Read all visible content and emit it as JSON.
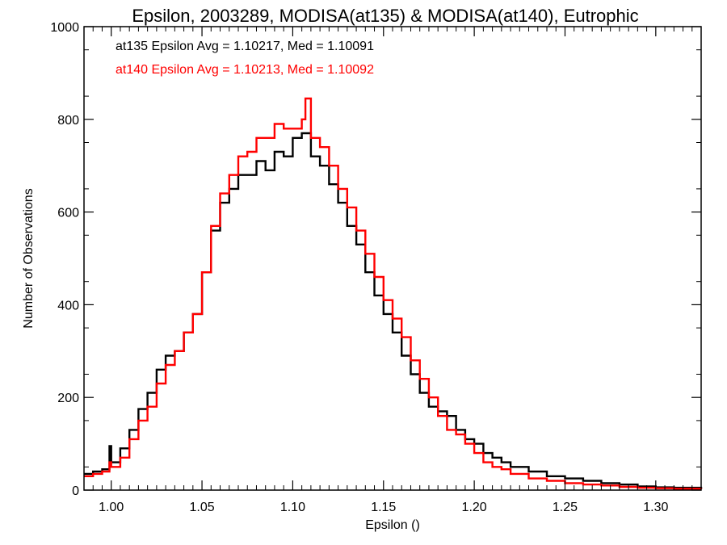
{
  "chart_data": {
    "type": "line",
    "title": "Epsilon, 2003289, MODISA(at135) & MODISA(at140), Eutrophic",
    "xlabel": "Epsilon ()",
    "ylabel": "Number of Observations",
    "xlim": [
      0.985,
      1.325
    ],
    "ylim": [
      0,
      1000
    ],
    "x_ticks": [
      1.0,
      1.05,
      1.1,
      1.15,
      1.2,
      1.25,
      1.3
    ],
    "x_tick_labels": [
      "1.00",
      "1.05",
      "1.10",
      "1.15",
      "1.20",
      "1.25",
      "1.30"
    ],
    "y_ticks": [
      0,
      200,
      400,
      600,
      800,
      1000
    ],
    "y_tick_labels": [
      "0",
      "200",
      "400",
      "600",
      "800",
      "1000"
    ],
    "grid": false,
    "legend_position": "top-left",
    "annotations": [
      {
        "text": "at135 Epsilon Avg = 1.10217, Med = 1.10091",
        "color": "#000000"
      },
      {
        "text": "at140 Epsilon Avg = 1.10213, Med = 1.10092",
        "color": "#ff0000"
      }
    ],
    "series": [
      {
        "color": "#000000",
        "x": [
          0.985,
          0.99,
          0.995,
          0.999,
          1.0,
          1.005,
          1.01,
          1.015,
          1.02,
          1.025,
          1.03,
          1.035,
          1.04,
          1.045,
          1.05,
          1.055,
          1.06,
          1.065,
          1.07,
          1.075,
          1.08,
          1.085,
          1.09,
          1.095,
          1.1,
          1.105,
          1.11,
          1.115,
          1.12,
          1.125,
          1.13,
          1.135,
          1.14,
          1.145,
          1.15,
          1.155,
          1.16,
          1.165,
          1.17,
          1.175,
          1.18,
          1.185,
          1.19,
          1.195,
          1.2,
          1.205,
          1.21,
          1.215,
          1.22,
          1.23,
          1.24,
          1.25,
          1.26,
          1.27,
          1.28,
          1.29,
          1.3,
          1.31,
          1.325
        ],
        "y": [
          35,
          40,
          45,
          95,
          60,
          90,
          130,
          175,
          210,
          260,
          290,
          300,
          340,
          380,
          470,
          560,
          620,
          650,
          680,
          680,
          710,
          690,
          730,
          720,
          760,
          770,
          720,
          700,
          660,
          620,
          570,
          530,
          470,
          420,
          380,
          340,
          290,
          250,
          210,
          180,
          170,
          160,
          130,
          110,
          100,
          80,
          70,
          60,
          50,
          40,
          30,
          25,
          20,
          15,
          12,
          8,
          6,
          5,
          3
        ]
      },
      {
        "color": "#ff0000",
        "x": [
          0.985,
          0.99,
          0.995,
          0.999,
          1.0,
          1.005,
          1.01,
          1.015,
          1.02,
          1.025,
          1.03,
          1.035,
          1.04,
          1.045,
          1.05,
          1.055,
          1.06,
          1.065,
          1.07,
          1.075,
          1.08,
          1.085,
          1.09,
          1.095,
          1.1,
          1.105,
          1.107,
          1.11,
          1.115,
          1.12,
          1.125,
          1.13,
          1.135,
          1.14,
          1.145,
          1.15,
          1.155,
          1.16,
          1.165,
          1.17,
          1.175,
          1.18,
          1.185,
          1.19,
          1.195,
          1.2,
          1.205,
          1.21,
          1.215,
          1.22,
          1.23,
          1.24,
          1.25,
          1.26,
          1.27,
          1.28,
          1.29,
          1.3,
          1.31,
          1.325
        ],
        "y": [
          30,
          35,
          40,
          60,
          50,
          70,
          110,
          150,
          180,
          230,
          270,
          300,
          340,
          380,
          470,
          570,
          640,
          680,
          720,
          730,
          760,
          760,
          790,
          780,
          780,
          800,
          845,
          760,
          740,
          700,
          650,
          610,
          560,
          510,
          460,
          410,
          370,
          330,
          280,
          240,
          200,
          160,
          130,
          120,
          100,
          80,
          60,
          50,
          45,
          35,
          25,
          20,
          15,
          12,
          10,
          7,
          5,
          4,
          3,
          2
        ]
      }
    ]
  }
}
